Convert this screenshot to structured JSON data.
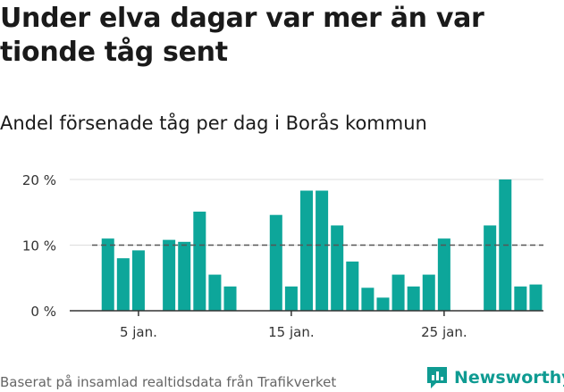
{
  "title": "Under elva dagar var mer än var tionde tåg sent",
  "subtitle": "Andel försenade tåg per dag i Borås kommun",
  "source": "Baserat på insamlad realtidsdata från Trafikverket",
  "brand": {
    "name": "Newsworthy",
    "color": "#0f9b92"
  },
  "colors": {
    "bar": "#0da69a",
    "reference_line": "#555555",
    "grid": "#dddddd",
    "axis": "#333333"
  },
  "chart_data": {
    "type": "bar",
    "x_unit": "day of January",
    "x": [
      1,
      2,
      3,
      4,
      5,
      6,
      7,
      8,
      9,
      10,
      11,
      12,
      13,
      14,
      15,
      16,
      17,
      18,
      19,
      20,
      21,
      22,
      23,
      24,
      25,
      26,
      27,
      28,
      29,
      30,
      31
    ],
    "values": [
      null,
      null,
      11,
      8,
      9.2,
      null,
      10.8,
      10.5,
      15.1,
      5.5,
      3.7,
      null,
      null,
      14.6,
      3.7,
      18.3,
      18.3,
      13,
      7.5,
      3.5,
      2,
      5.5,
      3.7,
      5.5,
      11,
      null,
      null,
      13,
      20,
      3.7,
      4
    ],
    "ylim": [
      0,
      20
    ],
    "yticks": [
      0,
      10,
      20
    ],
    "ytick_labels": [
      "0 %",
      "10 %",
      "20 %"
    ],
    "xticks": [
      5,
      15,
      25
    ],
    "xtick_labels": [
      "5 jan.",
      "15 jan.",
      "25 jan."
    ],
    "reference_line": {
      "value": 10,
      "style": "dashed"
    },
    "grid": true
  }
}
